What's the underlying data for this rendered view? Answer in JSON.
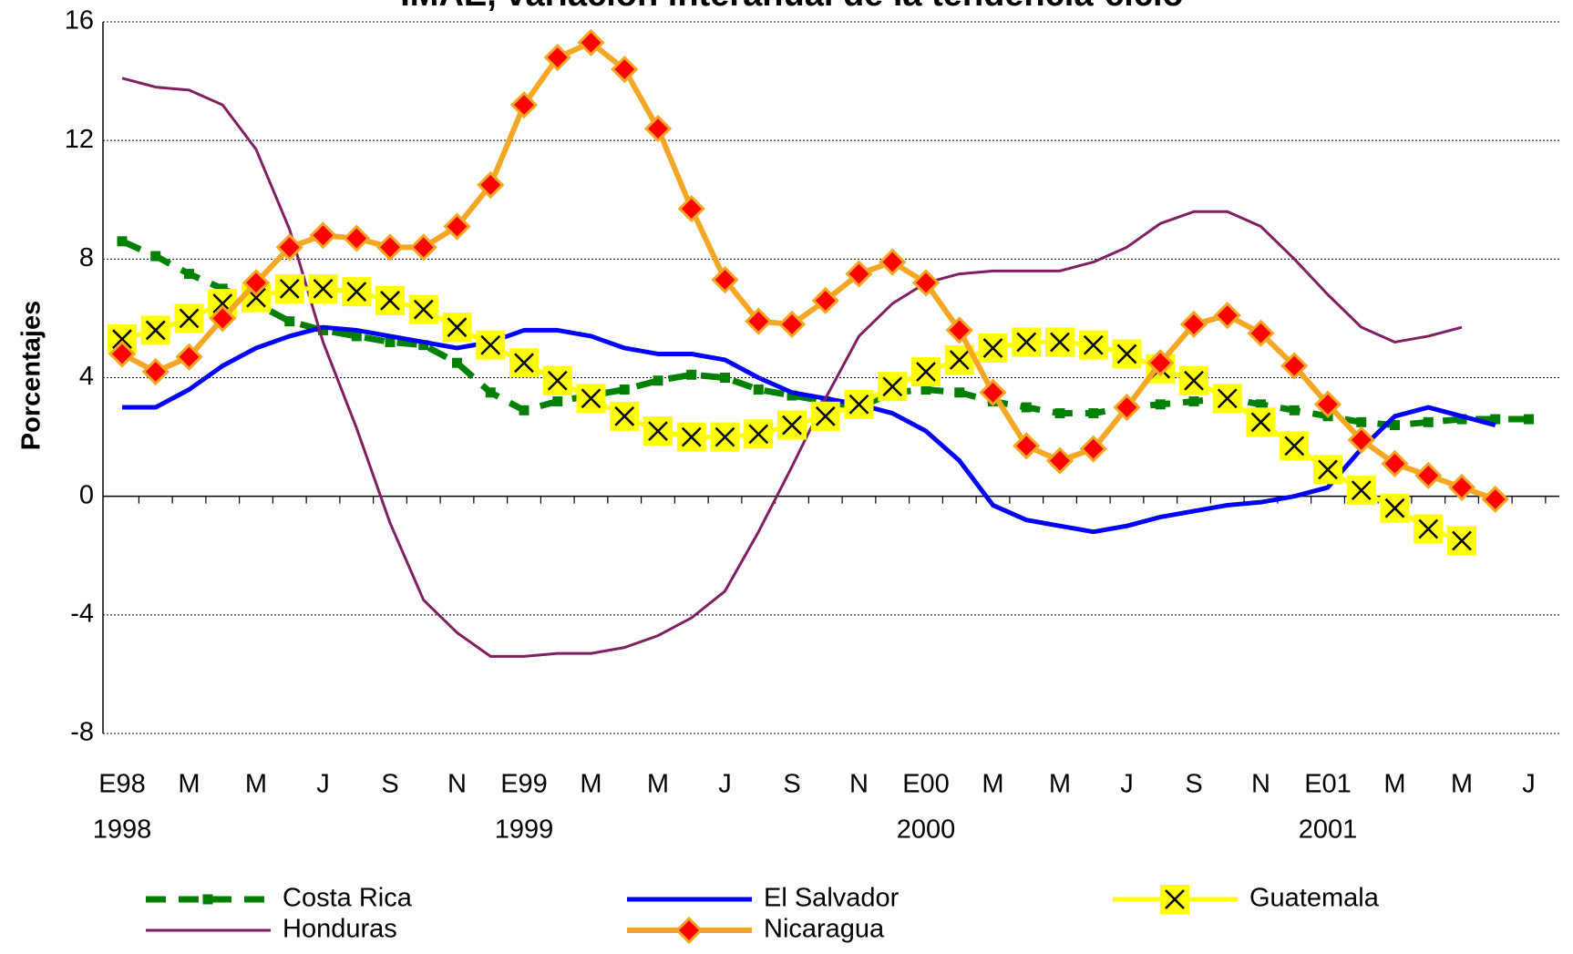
{
  "chart_data": {
    "type": "line",
    "title": "IMAE, variación interanual de la tendencia-ciclo",
    "y_label": "Porcentajes",
    "categories": [
      "E98",
      null,
      "M",
      null,
      "M",
      null,
      "J",
      null,
      "S",
      null,
      "N",
      null,
      "E99",
      null,
      "M",
      null,
      "M",
      null,
      "J",
      null,
      "S",
      null,
      "N",
      null,
      "E00",
      null,
      "M",
      null,
      "M",
      null,
      "J",
      null,
      "S",
      null,
      "N",
      null,
      "E01",
      null,
      "M",
      null,
      "M",
      null,
      "J"
    ],
    "years": [
      "1998",
      "1999",
      "2000",
      "2001"
    ],
    "ylim": [
      -8,
      16
    ],
    "yticks": [
      -8,
      -4,
      0,
      4,
      8,
      12,
      16
    ],
    "grid": true,
    "series": [
      {
        "name": "Costa Rica",
        "color": "#008000",
        "marker": "square",
        "line_style": "dashed",
        "values": [
          8.6,
          8.1,
          7.5,
          7.0,
          6.5,
          5.9,
          5.6,
          5.4,
          5.2,
          5.1,
          4.5,
          3.5,
          2.9,
          3.2,
          3.4,
          3.6,
          3.9,
          4.1,
          4.0,
          3.6,
          3.4,
          3.2,
          3.0,
          3.5,
          3.6,
          3.5,
          3.2,
          3.0,
          2.8,
          2.8,
          3.0,
          3.1,
          3.2,
          3.3,
          3.1,
          2.9,
          2.7,
          2.5,
          2.4,
          2.5,
          2.6,
          2.6,
          2.6
        ]
      },
      {
        "name": "El Salvador",
        "color": "#0000ff",
        "marker": null,
        "line_style": "solid",
        "values": [
          3.0,
          3.0,
          3.6,
          4.4,
          5.0,
          5.4,
          5.7,
          5.6,
          5.4,
          5.2,
          5.0,
          5.2,
          5.6,
          5.6,
          5.4,
          5.0,
          4.8,
          4.8,
          4.6,
          4.0,
          3.5,
          3.3,
          3.1,
          2.8,
          2.2,
          1.2,
          -0.3,
          -0.8,
          -1.0,
          -1.2,
          -1.0,
          -0.7,
          -0.5,
          -0.3,
          -0.2,
          0.0,
          0.3,
          1.6,
          2.7,
          3.0,
          2.7,
          2.4,
          null
        ]
      },
      {
        "name": "Guatemala",
        "color": "#ffff00",
        "marker": "x",
        "line_style": "solid",
        "values": [
          5.3,
          5.6,
          6.0,
          6.5,
          6.7,
          7.0,
          7.0,
          6.9,
          6.6,
          6.3,
          5.7,
          5.1,
          4.5,
          3.9,
          3.3,
          2.7,
          2.2,
          2.0,
          2.0,
          2.1,
          2.4,
          2.7,
          3.1,
          3.7,
          4.2,
          4.6,
          5.0,
          5.2,
          5.2,
          5.1,
          4.8,
          4.3,
          3.9,
          3.3,
          2.5,
          1.7,
          0.9,
          0.2,
          -0.4,
          -1.1,
          -1.5,
          null,
          null
        ]
      },
      {
        "name": "Honduras",
        "color": "#7f1f5f",
        "marker": null,
        "line_style": "thin",
        "values": [
          14.1,
          13.8,
          13.7,
          13.2,
          11.7,
          9.0,
          5.2,
          2.3,
          -0.9,
          -3.5,
          -4.6,
          -5.4,
          -5.4,
          -5.3,
          -5.3,
          -5.1,
          -4.7,
          -4.1,
          -3.2,
          -1.2,
          1.0,
          3.3,
          5.4,
          6.5,
          7.2,
          7.5,
          7.6,
          7.6,
          7.6,
          7.9,
          8.4,
          9.2,
          9.6,
          9.6,
          9.1,
          8.0,
          6.8,
          5.7,
          5.2,
          5.4,
          5.7,
          null,
          null
        ]
      },
      {
        "name": "Nicaragua",
        "color": "#f5a623",
        "marker": "diamond",
        "line_style": "solid",
        "values": [
          4.8,
          4.2,
          4.7,
          6.0,
          7.2,
          8.4,
          8.8,
          8.7,
          8.4,
          8.4,
          9.1,
          10.5,
          13.2,
          14.8,
          15.3,
          14.4,
          12.4,
          9.7,
          7.3,
          5.9,
          5.8,
          6.6,
          7.5,
          7.9,
          7.2,
          5.6,
          3.5,
          1.7,
          1.2,
          1.6,
          3.0,
          4.5,
          5.8,
          6.1,
          5.5,
          4.4,
          3.1,
          1.9,
          1.1,
          0.7,
          0.3,
          -0.1,
          null
        ]
      }
    ]
  }
}
